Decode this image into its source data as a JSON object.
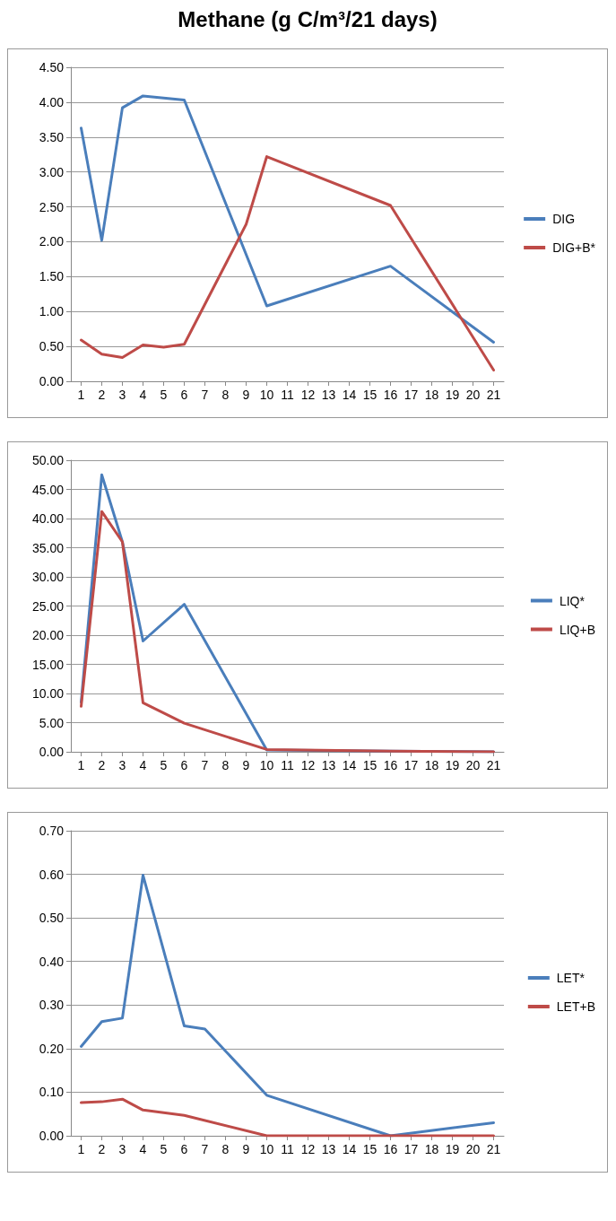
{
  "chart_data": [
    {
      "type": "line",
      "title": "Methane (g C/m³/21 days)",
      "xlim": [
        0.5,
        21.5
      ],
      "xticks": [
        1,
        2,
        3,
        4,
        5,
        6,
        7,
        8,
        9,
        10,
        11,
        12,
        13,
        14,
        15,
        16,
        17,
        18,
        19,
        20,
        21
      ],
      "ylim": [
        0,
        4.5
      ],
      "yticks": [
        {
          "value": 0,
          "label": "0.00"
        },
        {
          "value": 0.5,
          "label": "0.50"
        },
        {
          "value": 1,
          "label": "1.00"
        },
        {
          "value": 1.5,
          "label": "1.50"
        },
        {
          "value": 2,
          "label": "2.00"
        },
        {
          "value": 2.5,
          "label": "2.50"
        },
        {
          "value": 3,
          "label": "3.00"
        },
        {
          "value": 3.5,
          "label": "3.50"
        },
        {
          "value": 4,
          "label": "4.00"
        },
        {
          "value": 4.5,
          "label": "4.50"
        }
      ],
      "grid": "y",
      "legend": "right",
      "marker": "none",
      "line_style": "solid",
      "series": [
        {
          "name": "DIG",
          "color": "#4a7ebb",
          "x": [
            1,
            2,
            3,
            4,
            6,
            10,
            16,
            21
          ],
          "values": [
            3.63,
            2.02,
            3.92,
            4.09,
            4.03,
            1.08,
            1.65,
            0.56
          ]
        },
        {
          "name": "DIG+B*",
          "color": "#be4b48",
          "x": [
            1,
            2,
            3,
            4,
            5,
            6,
            9,
            10,
            16,
            21
          ],
          "values": [
            0.59,
            0.39,
            0.34,
            0.52,
            0.49,
            0.53,
            2.25,
            3.22,
            2.52,
            0.16
          ]
        }
      ]
    },
    {
      "type": "line",
      "xlim": [
        0.5,
        21.5
      ],
      "xticks": [
        1,
        2,
        3,
        4,
        5,
        6,
        7,
        8,
        9,
        10,
        11,
        12,
        13,
        14,
        15,
        16,
        17,
        18,
        19,
        20,
        21
      ],
      "ylim": [
        0,
        50
      ],
      "yticks": [
        {
          "value": 0,
          "label": "0.00"
        },
        {
          "value": 5,
          "label": "5.00"
        },
        {
          "value": 10,
          "label": "10.00"
        },
        {
          "value": 15,
          "label": "15.00"
        },
        {
          "value": 20,
          "label": "20.00"
        },
        {
          "value": 25,
          "label": "25.00"
        },
        {
          "value": 30,
          "label": "30.00"
        },
        {
          "value": 35,
          "label": "35.00"
        },
        {
          "value": 40,
          "label": "40.00"
        },
        {
          "value": 45,
          "label": "45.00"
        },
        {
          "value": 50,
          "label": "50.00"
        }
      ],
      "grid": "y",
      "legend": "right",
      "marker": "none",
      "line_style": "solid",
      "series": [
        {
          "name": "LIQ*",
          "color": "#4a7ebb",
          "x": [
            1,
            2,
            3,
            4,
            6,
            10,
            16,
            21
          ],
          "values": [
            8.5,
            47.5,
            36,
            19,
            25.3,
            0.3,
            0.1,
            0
          ]
        },
        {
          "name": "LIQ+B",
          "color": "#be4b48",
          "x": [
            1,
            2,
            3,
            4,
            6,
            10,
            16,
            21
          ],
          "values": [
            7.8,
            41.2,
            36,
            8.4,
            4.9,
            0.4,
            0.1,
            0
          ]
        }
      ]
    },
    {
      "type": "line",
      "xlim": [
        0.5,
        21.5
      ],
      "xticks": [
        1,
        2,
        3,
        4,
        5,
        6,
        7,
        8,
        9,
        10,
        11,
        12,
        13,
        14,
        15,
        16,
        17,
        18,
        19,
        20,
        21
      ],
      "ylim": [
        0,
        0.7
      ],
      "yticks": [
        {
          "value": 0,
          "label": "0.00"
        },
        {
          "value": 0.1,
          "label": "0.10"
        },
        {
          "value": 0.2,
          "label": "0.20"
        },
        {
          "value": 0.3,
          "label": "0.30"
        },
        {
          "value": 0.4,
          "label": "0.40"
        },
        {
          "value": 0.5,
          "label": "0.50"
        },
        {
          "value": 0.6,
          "label": "0.60"
        },
        {
          "value": 0.7,
          "label": "0.70"
        }
      ],
      "grid": "y",
      "legend": "right",
      "marker": "none",
      "line_style": "solid",
      "series": [
        {
          "name": "LET*",
          "color": "#4a7ebb",
          "x": [
            1,
            2,
            3,
            4,
            6,
            7,
            10,
            16,
            21
          ],
          "values": [
            0.205,
            0.262,
            0.27,
            0.598,
            0.252,
            0.245,
            0.093,
            0,
            0.03
          ]
        },
        {
          "name": "LET+B",
          "color": "#be4b48",
          "x": [
            1,
            2,
            3,
            4,
            6,
            10,
            16,
            21
          ],
          "values": [
            0.076,
            0.078,
            0.084,
            0.059,
            0.047,
            0,
            0,
            0
          ]
        }
      ]
    }
  ]
}
